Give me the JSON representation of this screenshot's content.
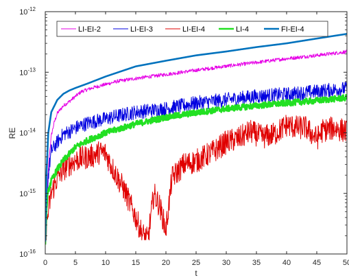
{
  "chart_data": {
    "type": "line",
    "xlabel": "t",
    "ylabel": "RE",
    "xlim": [
      0,
      50
    ],
    "ylim": [
      1e-16,
      1e-12
    ],
    "yscale": "log",
    "grid": false,
    "legend_position": "top",
    "x_ticks": [
      "0",
      "5",
      "10",
      "15",
      "20",
      "25",
      "30",
      "35",
      "40",
      "45",
      "50"
    ],
    "y_ticks": [
      {
        "base": "10",
        "exp": "-16"
      },
      {
        "base": "10",
        "exp": "-15"
      },
      {
        "base": "10",
        "exp": "-14"
      },
      {
        "base": "10",
        "exp": "-13"
      },
      {
        "base": "10",
        "exp": "-12"
      }
    ],
    "series": [
      {
        "name": "LI-EI-2",
        "color": "#e600e6",
        "width": 1,
        "noise": 0.03,
        "points": [
          [
            0,
            1.6e-16
          ],
          [
            0.3,
            1e-15
          ],
          [
            0.6,
            3.5e-15
          ],
          [
            1,
            9e-15
          ],
          [
            1.5,
            1.5e-14
          ],
          [
            2,
            2.1e-14
          ],
          [
            3,
            2.8e-14
          ],
          [
            4,
            3.3e-14
          ],
          [
            5,
            4e-14
          ],
          [
            6,
            4.8e-14
          ],
          [
            8,
            5.6e-14
          ],
          [
            10,
            6.3e-14
          ],
          [
            12,
            7.1e-14
          ],
          [
            15,
            7.9e-14
          ],
          [
            20,
            9.2e-14
          ],
          [
            25,
            1.08e-13
          ],
          [
            30,
            1.26e-13
          ],
          [
            35,
            1.45e-13
          ],
          [
            40,
            1.68e-13
          ],
          [
            45,
            1.9e-13
          ],
          [
            50,
            2.18e-13
          ]
        ]
      },
      {
        "name": "LI-EI-3",
        "color": "#0000e0",
        "width": 1,
        "noise": 0.12,
        "points": [
          [
            0,
            1.6e-16
          ],
          [
            0.5,
            2e-15
          ],
          [
            1,
            5e-15
          ],
          [
            2,
            7e-15
          ],
          [
            3,
            9.5e-15
          ],
          [
            4,
            1.05e-14
          ],
          [
            5,
            1.2e-14
          ],
          [
            7,
            1.45e-14
          ],
          [
            10,
            1.7e-14
          ],
          [
            12,
            1.9e-14
          ],
          [
            15,
            2.2e-14
          ],
          [
            20,
            2.5e-14
          ],
          [
            25,
            3.1e-14
          ],
          [
            30,
            3.5e-14
          ],
          [
            35,
            4e-14
          ],
          [
            40,
            4.3e-14
          ],
          [
            45,
            4.8e-14
          ],
          [
            50,
            5.4e-14
          ]
        ]
      },
      {
        "name": "LI-EI-4",
        "color": "#e00000",
        "width": 1,
        "noise": 0.2,
        "floor": 1.7e-16,
        "points": [
          [
            0,
            1.7e-16
          ],
          [
            0.5,
            5e-16
          ],
          [
            1,
            1e-15
          ],
          [
            2,
            1.8e-15
          ],
          [
            3,
            2.5e-15
          ],
          [
            4,
            3e-15
          ],
          [
            5,
            3.5e-15
          ],
          [
            6,
            3.8e-15
          ],
          [
            8,
            4.2e-15
          ],
          [
            9,
            4.8e-15
          ],
          [
            10,
            4.6e-15
          ],
          [
            11,
            2.8e-15
          ],
          [
            12,
            1.8e-15
          ],
          [
            13,
            1.2e-15
          ],
          [
            14,
            7e-16
          ],
          [
            15,
            4e-16
          ],
          [
            16,
            2.2e-16
          ],
          [
            17,
            1.7e-16
          ],
          [
            18,
            1e-15
          ],
          [
            19,
            6e-16
          ],
          [
            20,
            2.5e-16
          ],
          [
            21,
            1.8e-15
          ],
          [
            23,
            3e-15
          ],
          [
            25,
            3.4e-15
          ],
          [
            28,
            5e-15
          ],
          [
            30,
            7e-15
          ],
          [
            32,
            8e-15
          ],
          [
            34,
            1.05e-14
          ],
          [
            36,
            8.5e-15
          ],
          [
            38,
            9.5e-15
          ],
          [
            40,
            1.35e-14
          ],
          [
            42,
            1.2e-14
          ],
          [
            43,
            1.25e-14
          ],
          [
            45,
            8e-15
          ],
          [
            46,
            1.1e-14
          ],
          [
            48,
            1.2e-14
          ],
          [
            50,
            1.05e-14
          ]
        ]
      },
      {
        "name": "LI-4",
        "color": "#22e022",
        "width": 2.6,
        "noise": 0.05,
        "points": [
          [
            0,
            1.6e-16
          ],
          [
            0.3,
            8e-16
          ],
          [
            0.6,
            1.2e-15
          ],
          [
            1,
            1.6e-15
          ],
          [
            2,
            2.5e-15
          ],
          [
            3,
            3.5e-15
          ],
          [
            4,
            4.5e-15
          ],
          [
            5,
            5.8e-15
          ],
          [
            7,
            7.5e-15
          ],
          [
            10,
            1e-14
          ],
          [
            15,
            1.4e-14
          ],
          [
            20,
            1.8e-14
          ],
          [
            25,
            2.15e-14
          ],
          [
            30,
            2.5e-14
          ],
          [
            35,
            2.8e-14
          ],
          [
            40,
            3.1e-14
          ],
          [
            45,
            3.4e-14
          ],
          [
            50,
            3.8e-14
          ]
        ]
      },
      {
        "name": "FI-EI-4",
        "color": "#0072bd",
        "width": 2.6,
        "noise": 0,
        "points": [
          [
            0,
            1.6e-16
          ],
          [
            0.2,
            2e-15
          ],
          [
            0.5,
            1e-14
          ],
          [
            1,
            2.2e-14
          ],
          [
            2,
            3.5e-14
          ],
          [
            3,
            4.4e-14
          ],
          [
            4,
            5e-14
          ],
          [
            5,
            5.5e-14
          ],
          [
            7,
            6.5e-14
          ],
          [
            10,
            8.5e-14
          ],
          [
            15,
            1.25e-13
          ],
          [
            20,
            1.55e-13
          ],
          [
            25,
            1.9e-13
          ],
          [
            30,
            2.2e-13
          ],
          [
            35,
            2.6e-13
          ],
          [
            40,
            3e-13
          ],
          [
            45,
            3.6e-13
          ],
          [
            50,
            4.3e-13
          ]
        ]
      }
    ]
  }
}
